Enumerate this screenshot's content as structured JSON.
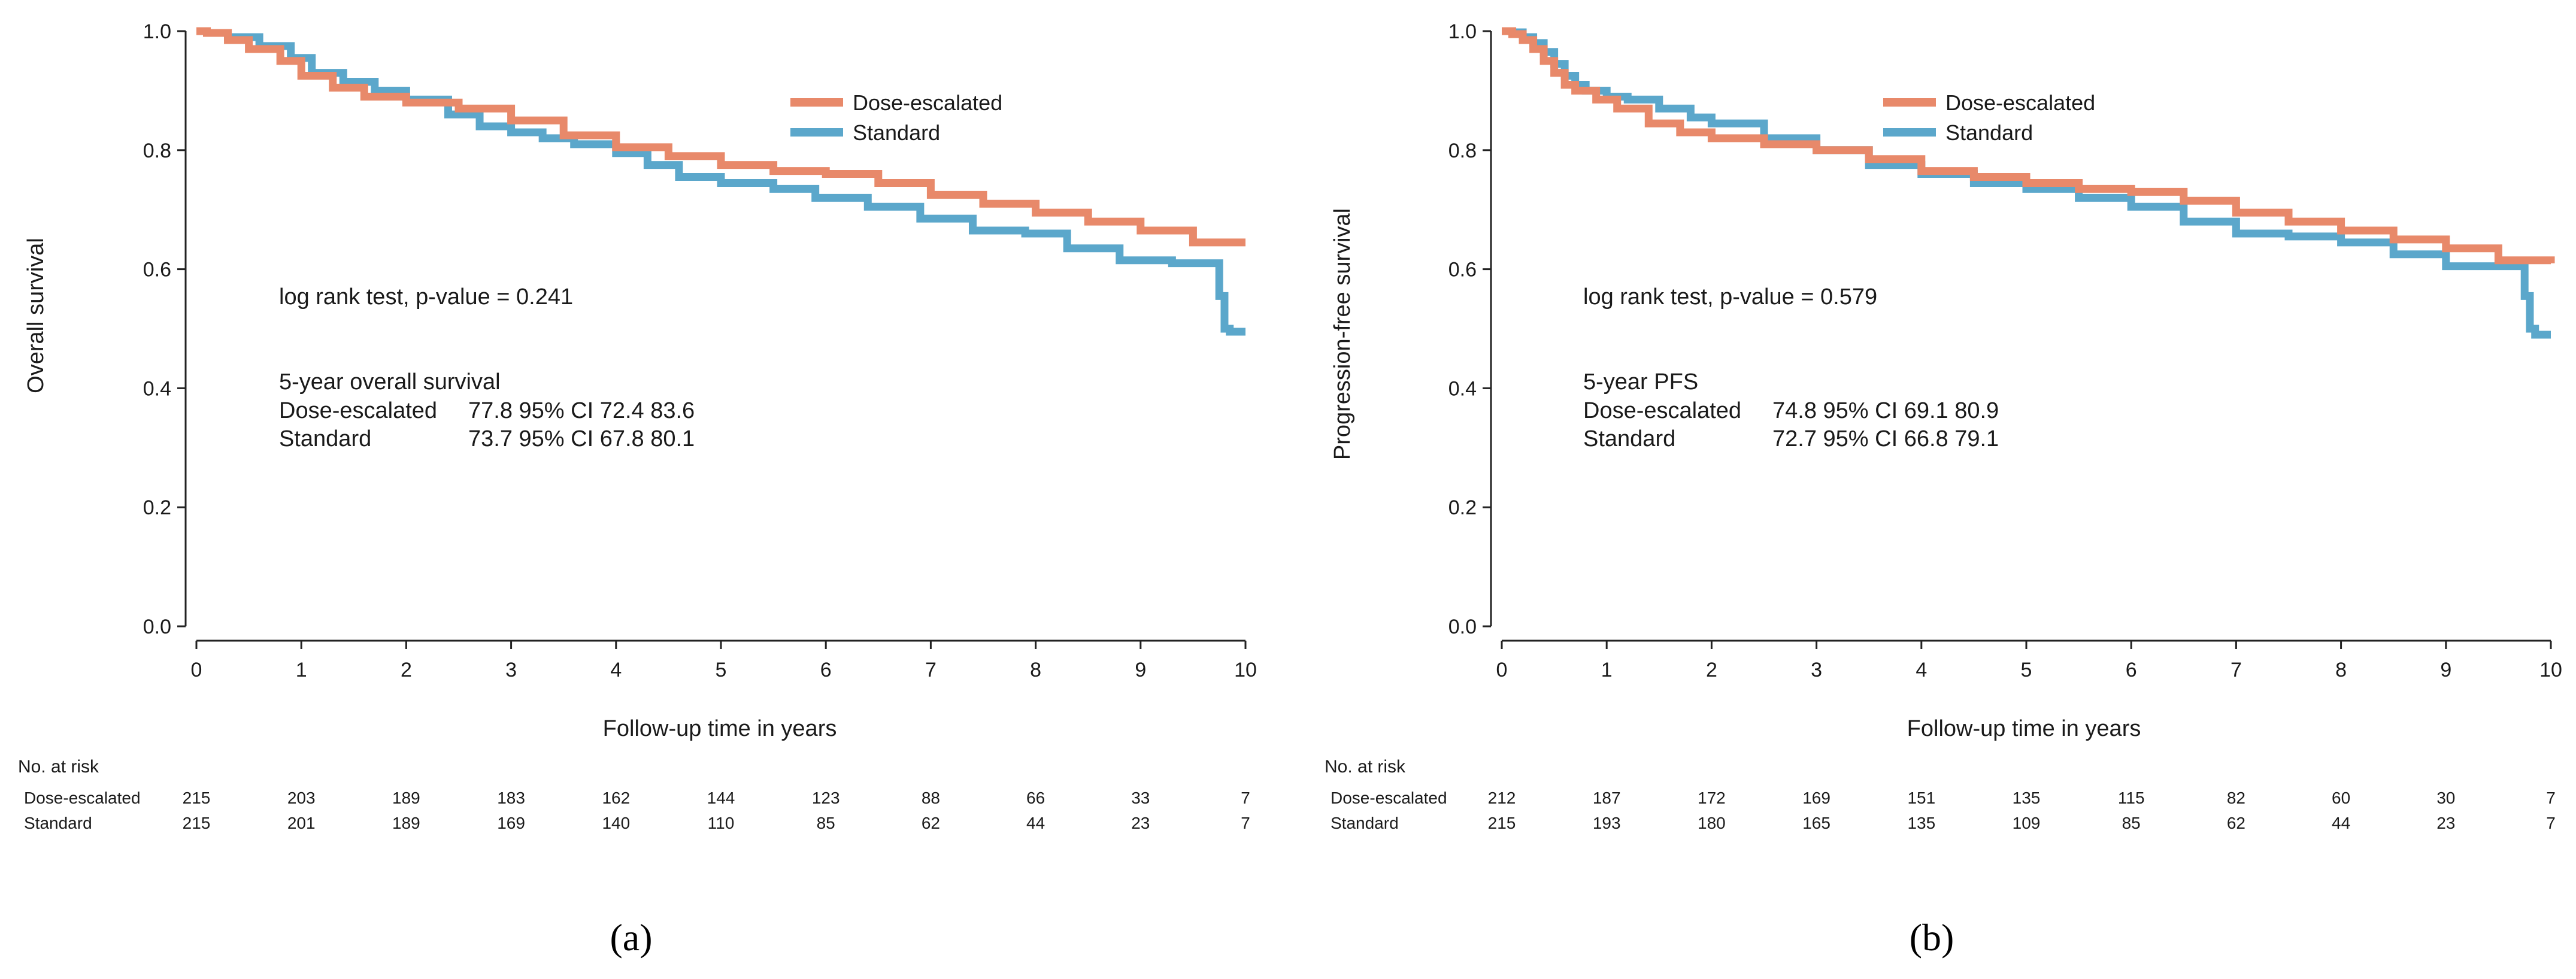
{
  "colors": {
    "dose": "#E8896A",
    "standard": "#5BA7CB",
    "axis": "#222222"
  },
  "chart_data": [
    {
      "type": "line",
      "subfigure": "(a)",
      "xlabel": "Follow-up time in years",
      "ylabel": "Overall survival",
      "xlim": [
        0,
        10
      ],
      "ylim": [
        0,
        1
      ],
      "xticks": [
        "0",
        "1",
        "2",
        "3",
        "4",
        "5",
        "6",
        "7",
        "8",
        "9",
        "10"
      ],
      "yticks": [
        "0.0",
        "0.2",
        "0.4",
        "0.6",
        "0.8",
        "1.0"
      ],
      "legend": {
        "placement": "top-right",
        "entries": [
          "Dose-escalated",
          "Standard"
        ]
      },
      "annotation": "log rank test, p-value = 0.241",
      "summary": {
        "title": "5-year overall survival",
        "rows": [
          {
            "label": "Dose-escalated",
            "value": "77.8 95% CI 72.4 83.6"
          },
          {
            "label": "Standard",
            "value": "73.7 95% CI 67.8 80.1"
          }
        ]
      },
      "series": [
        {
          "name": "Dose-escalated",
          "x": [
            0,
            0.1,
            0.3,
            0.5,
            0.8,
            1.0,
            1.3,
            1.6,
            2.0,
            2.5,
            3.0,
            3.5,
            4.0,
            4.5,
            5.0,
            5.5,
            6.0,
            6.5,
            7.0,
            7.5,
            8.0,
            8.5,
            9.0,
            9.5,
            10.0
          ],
          "y": [
            1.0,
            0.997,
            0.985,
            0.97,
            0.95,
            0.925,
            0.905,
            0.89,
            0.88,
            0.87,
            0.85,
            0.825,
            0.805,
            0.79,
            0.775,
            0.765,
            0.76,
            0.745,
            0.725,
            0.71,
            0.695,
            0.68,
            0.665,
            0.645,
            0.645
          ]
        },
        {
          "name": "Standard",
          "x": [
            0,
            0.1,
            0.3,
            0.6,
            0.9,
            1.1,
            1.4,
            1.7,
            2.0,
            2.4,
            2.7,
            3.0,
            3.3,
            3.6,
            4.0,
            4.3,
            4.6,
            5.0,
            5.5,
            5.9,
            6.4,
            6.9,
            7.4,
            7.9,
            8.3,
            8.8,
            9.3,
            9.7,
            9.75,
            9.8,
            9.85,
            10.0
          ],
          "y": [
            1.0,
            0.997,
            0.99,
            0.975,
            0.955,
            0.93,
            0.915,
            0.9,
            0.885,
            0.86,
            0.84,
            0.83,
            0.82,
            0.81,
            0.795,
            0.775,
            0.755,
            0.745,
            0.735,
            0.72,
            0.705,
            0.685,
            0.665,
            0.66,
            0.635,
            0.615,
            0.61,
            0.61,
            0.555,
            0.5,
            0.495,
            0.495
          ]
        }
      ],
      "risk_table": {
        "title": "No. at risk",
        "rows": [
          {
            "label": "Dose-escalated",
            "values": [
              "215",
              "203",
              "189",
              "183",
              "162",
              "144",
              "123",
              "88",
              "66",
              "33",
              "7"
            ]
          },
          {
            "label": "Standard",
            "values": [
              "215",
              "201",
              "189",
              "169",
              "140",
              "110",
              "85",
              "62",
              "44",
              "23",
              "7"
            ]
          }
        ]
      }
    },
    {
      "type": "line",
      "subfigure": "(b)",
      "xlabel": "Follow-up time in years",
      "ylabel": "Progression-free survival",
      "xlim": [
        0,
        10
      ],
      "ylim": [
        0,
        1
      ],
      "xticks": [
        "0",
        "1",
        "2",
        "3",
        "4",
        "5",
        "6",
        "7",
        "8",
        "9",
        "10"
      ],
      "yticks": [
        "0.0",
        "0.2",
        "0.4",
        "0.6",
        "0.8",
        "1.0"
      ],
      "legend": {
        "placement": "top-right",
        "entries": [
          "Dose-escalated",
          "Standard"
        ]
      },
      "annotation": "log rank test, p-value = 0.579",
      "summary": {
        "title": "5-year PFS",
        "rows": [
          {
            "label": "Dose-escalated",
            "value": "74.8 95% CI 69.1 80.9"
          },
          {
            "label": "Standard",
            "value": "72.7 95% CI 66.8 79.1"
          }
        ]
      },
      "series": [
        {
          "name": "Dose-escalated",
          "x": [
            0,
            0.1,
            0.2,
            0.3,
            0.4,
            0.5,
            0.6,
            0.7,
            0.9,
            1.1,
            1.4,
            1.7,
            2.0,
            2.5,
            3.0,
            3.5,
            4.0,
            4.5,
            5.0,
            5.5,
            6.0,
            6.5,
            7.0,
            7.5,
            8.0,
            8.5,
            9.0,
            9.5,
            10.0
          ],
          "y": [
            1.0,
            0.995,
            0.985,
            0.97,
            0.95,
            0.93,
            0.91,
            0.9,
            0.885,
            0.87,
            0.845,
            0.83,
            0.82,
            0.81,
            0.8,
            0.785,
            0.765,
            0.755,
            0.745,
            0.735,
            0.73,
            0.715,
            0.695,
            0.68,
            0.665,
            0.65,
            0.635,
            0.615,
            0.61
          ]
        },
        {
          "name": "Standard",
          "x": [
            0,
            0.1,
            0.2,
            0.3,
            0.4,
            0.5,
            0.6,
            0.7,
            0.8,
            1.0,
            1.2,
            1.5,
            1.8,
            2.0,
            2.5,
            3.0,
            3.5,
            4.0,
            4.5,
            5.0,
            5.5,
            6.0,
            6.5,
            7.0,
            7.5,
            8.0,
            8.5,
            9.0,
            9.5,
            9.7,
            9.75,
            9.8,
            9.85,
            10.0
          ],
          "y": [
            1.0,
            0.998,
            0.99,
            0.98,
            0.965,
            0.945,
            0.925,
            0.91,
            0.9,
            0.89,
            0.885,
            0.87,
            0.855,
            0.845,
            0.82,
            0.8,
            0.775,
            0.76,
            0.745,
            0.735,
            0.72,
            0.705,
            0.68,
            0.66,
            0.655,
            0.645,
            0.625,
            0.605,
            0.605,
            0.605,
            0.555,
            0.5,
            0.49,
            0.49
          ]
        }
      ],
      "risk_table": {
        "title": "No. at risk",
        "rows": [
          {
            "label": "Dose-escalated",
            "values": [
              "212",
              "187",
              "172",
              "169",
              "151",
              "135",
              "115",
              "82",
              "60",
              "30",
              "7"
            ]
          },
          {
            "label": "Standard",
            "values": [
              "215",
              "193",
              "180",
              "165",
              "135",
              "109",
              "85",
              "62",
              "44",
              "23",
              "7"
            ]
          }
        ]
      }
    }
  ]
}
